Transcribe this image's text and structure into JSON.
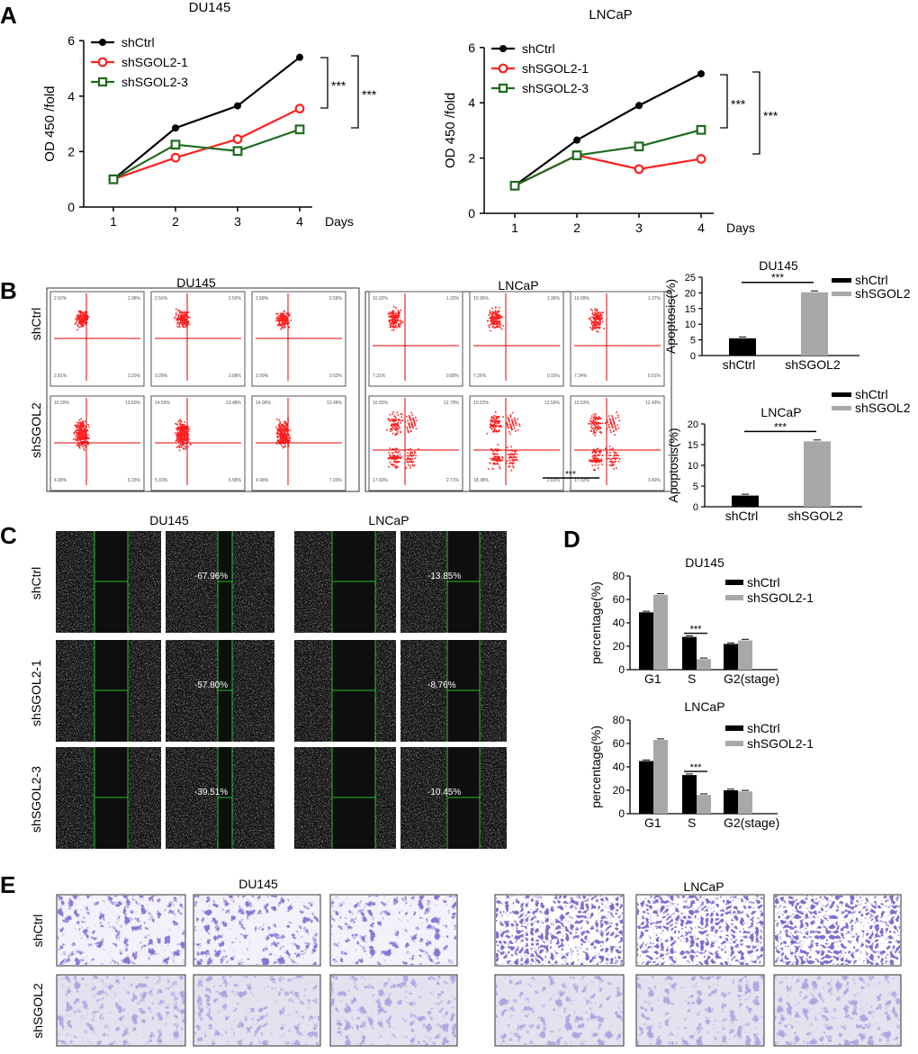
{
  "panels": {
    "A": "A",
    "B": "B",
    "C": "C",
    "D": "D",
    "E": "E"
  },
  "colors": {
    "ctrl": "#000000",
    "sh1": "#ff2020",
    "sh3": "#1e6b1e",
    "gray": "#a8a8a8",
    "flowDot": "#ff2020",
    "flowLine": "#e00000",
    "crystal": "#3b2ea8",
    "woundLine": "#22c022"
  },
  "legends": {
    "growth": [
      "shCtrl",
      "shSGOL2-1",
      "shSGOL2-3"
    ],
    "apoptosis": [
      "shCtrl",
      "shSGOL2"
    ],
    "cycle": [
      "shCtrl",
      "shSGOL2-1"
    ]
  },
  "chart_data": [
    {
      "id": "growth-du145",
      "type": "line",
      "title": "DU145",
      "ylabel": "OD 450 /fold",
      "xlabel": "Days",
      "x": [
        1,
        2,
        3,
        4
      ],
      "ylim": [
        0,
        6
      ],
      "yticks": [
        0,
        2,
        4,
        6
      ],
      "series": [
        {
          "name": "shCtrl",
          "values": [
            1.0,
            2.85,
            3.65,
            5.4
          ]
        },
        {
          "name": "shSGOL2-1",
          "values": [
            1.0,
            1.78,
            2.45,
            3.55
          ]
        },
        {
          "name": "shSGOL2-3",
          "values": [
            1.0,
            2.25,
            2.02,
            2.8
          ]
        }
      ],
      "annotations": [
        "***",
        "***"
      ]
    },
    {
      "id": "growth-lncap",
      "type": "line",
      "title": "LNCaP",
      "ylabel": "OD 450 /fold",
      "xlabel": "Days",
      "x": [
        1,
        2,
        3,
        4
      ],
      "ylim": [
        0,
        6
      ],
      "yticks": [
        0,
        2,
        4,
        6
      ],
      "series": [
        {
          "name": "shCtrl",
          "values": [
            1.0,
            2.65,
            3.9,
            5.05
          ]
        },
        {
          "name": "shSGOL2-1",
          "values": [
            1.0,
            2.1,
            1.6,
            1.97
          ]
        },
        {
          "name": "shSGOL2-3",
          "values": [
            1.0,
            2.1,
            2.42,
            3.02
          ]
        }
      ],
      "annotations": [
        "***",
        "***"
      ]
    },
    {
      "id": "apop-du145",
      "type": "bar",
      "title": "DU145",
      "ylabel": "Apoptosis(%)",
      "categories": [
        "shCtrl",
        "shSGOL2"
      ],
      "values": [
        5.5,
        20.2
      ],
      "ylim": [
        0,
        25
      ],
      "yticks": [
        0,
        5,
        10,
        15,
        20,
        25
      ],
      "annotation": "***"
    },
    {
      "id": "apop-lncap",
      "type": "bar",
      "title": "LNCaP",
      "ylabel": "Apoptosis(%)",
      "categories": [
        "shCtrl",
        "shSGOL2"
      ],
      "values": [
        2.7,
        15.8
      ],
      "ylim": [
        0,
        20
      ],
      "yticks": [
        0,
        5,
        10,
        15,
        20
      ],
      "annotation": "***"
    },
    {
      "id": "cycle-du145",
      "type": "bar",
      "title": "DU145",
      "ylabel": "percentage(%)",
      "categories": [
        "G1",
        "S",
        "G2(stage)"
      ],
      "series": [
        {
          "name": "shCtrl",
          "values": [
            49,
            28,
            22
          ]
        },
        {
          "name": "shSGOL2-1",
          "values": [
            64,
            9,
            25
          ]
        }
      ],
      "ylim": [
        0,
        80
      ],
      "yticks": [
        0,
        20,
        40,
        60,
        80
      ],
      "annotation": "***"
    },
    {
      "id": "cycle-lncap",
      "type": "bar",
      "title": "LNCaP",
      "ylabel": "percentage(%)",
      "categories": [
        "G1",
        "S",
        "G2(stage)"
      ],
      "series": [
        {
          "name": "shCtrl",
          "values": [
            45,
            33,
            20
          ]
        },
        {
          "name": "shSGOL2-1",
          "values": [
            63,
            16,
            19
          ]
        }
      ],
      "ylim": [
        0,
        80
      ],
      "yticks": [
        0,
        20,
        40,
        60,
        80
      ],
      "annotation": "***"
    }
  ],
  "flow": {
    "titles": [
      "DU145",
      "LNCaP"
    ],
    "rowLabels": [
      "shCtrl",
      "shSGOL2"
    ],
    "quadrants": [
      [
        [
          "2.98%",
          "2.92%",
          "2.81%",
          "3.20%"
        ],
        [
          "2.50%",
          "2.56%",
          "3.28%",
          "3.08%"
        ],
        [
          "2.59%",
          "2.58%",
          "2.99%",
          "3.52%"
        ]
      ],
      [
        [
          "13.50%",
          "15.20%",
          "4.98%",
          "6.33%"
        ],
        [
          "13.48%",
          "14.56%",
          "5.33%",
          "6.58%"
        ],
        [
          "13.48%",
          "14.99%",
          "4.98%",
          "7.03%"
        ]
      ],
      [
        [
          "1.32%",
          "10.92%",
          "7.31%",
          "0.80%"
        ],
        [
          "1.36%",
          "10.95%",
          "7.26%",
          "0.93%"
        ],
        [
          "1.37%",
          "10.99%",
          "7.34%",
          "0.91%"
        ]
      ],
      [
        [
          "12.79%",
          "10.65%",
          "17.60%",
          "2.71%"
        ],
        [
          "12.59%",
          "10.52%",
          "18.38%",
          "2.83%"
        ],
        [
          "12.49%",
          "10.53%",
          "17.93%",
          "3.40%"
        ]
      ]
    ],
    "stray": "***"
  },
  "wound": {
    "titles": [
      "DU145",
      "LNCaP"
    ],
    "rowLabels": [
      "shCtrl",
      "shSGOL2-1",
      "shSGOL2-3"
    ],
    "du145": [
      "-67.96%",
      "-57.80%",
      "-39.51%"
    ],
    "lncap": [
      "-13.85%",
      "-8.76%",
      "-10.45%"
    ]
  },
  "transwell": {
    "titles": [
      "DU145",
      "LNCaP"
    ],
    "rowLabels": [
      "shCtrl",
      "shSGOL2"
    ]
  }
}
